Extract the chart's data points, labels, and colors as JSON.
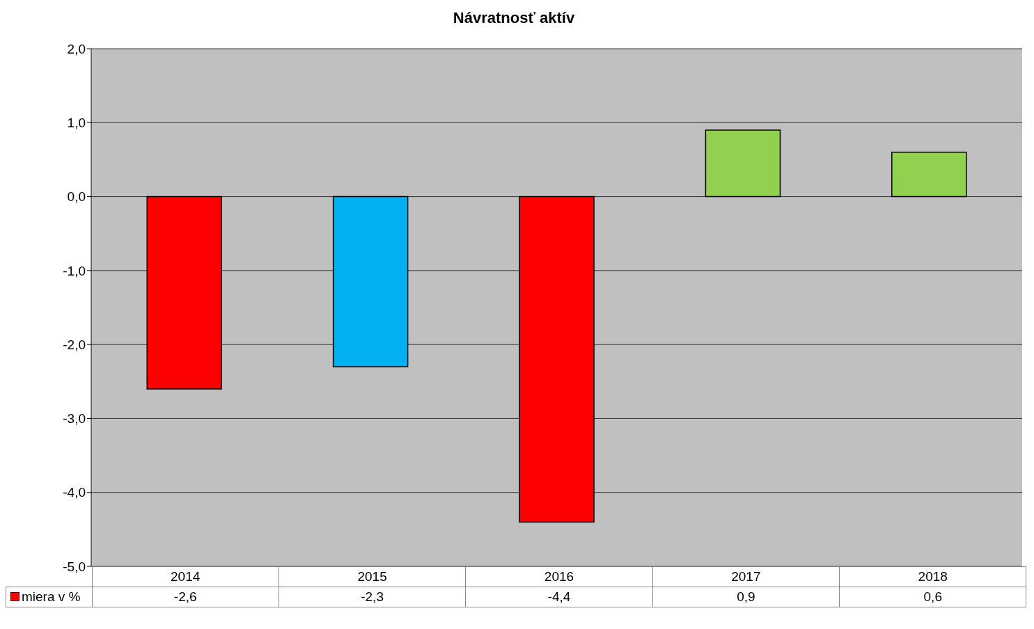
{
  "chart_data": {
    "type": "bar",
    "title": "Návratnosť aktív",
    "categories": [
      "2014",
      "2015",
      "2016",
      "2017",
      "2018"
    ],
    "series": [
      {
        "name": "miera v %",
        "color": "#ff0000",
        "colors": [
          "#ff0000",
          "#00b0f0",
          "#ff0000",
          "#92d050",
          "#92d050"
        ],
        "values": [
          -2.6,
          -2.3,
          -4.4,
          0.9,
          0.6
        ],
        "value_labels": [
          "-2,6",
          "-2,3",
          "-4,4",
          "0,9",
          "0,6"
        ]
      }
    ],
    "ylim": [
      -5,
      2
    ],
    "yticks": [
      {
        "value": -5,
        "label": "-5,0"
      },
      {
        "value": -4,
        "label": "-4,0"
      },
      {
        "value": -3,
        "label": "-3,0"
      },
      {
        "value": -2,
        "label": "-2,0"
      },
      {
        "value": -1,
        "label": "-1,0"
      },
      {
        "value": 0,
        "label": "0,0"
      },
      {
        "value": 1,
        "label": "1,0"
      },
      {
        "value": 2,
        "label": "2,0"
      }
    ],
    "grid": "y",
    "legend": "bottom"
  }
}
